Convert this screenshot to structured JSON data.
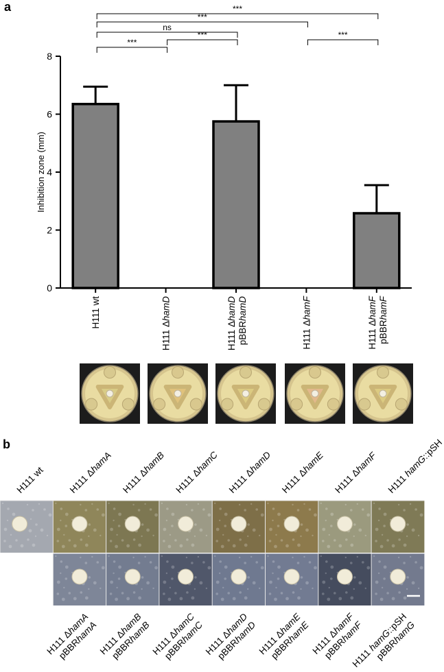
{
  "panel_a": {
    "label": "a",
    "chart_data": {
      "type": "bar",
      "ylabel": "Inhibition zone (mm)",
      "ylim": [
        0,
        8
      ],
      "yticks": [
        "0",
        "2",
        "4",
        "6",
        "8"
      ],
      "bar_color": "#808080",
      "categories": [
        {
          "prefix": "H111 ",
          "gene": "wt",
          "gene_italic": false,
          "delta": false,
          "plasmid_prefix": "",
          "plasmid_gene": ""
        },
        {
          "prefix": "H111 ",
          "gene": "hamD",
          "gene_italic": true,
          "delta": true,
          "plasmid_prefix": "",
          "plasmid_gene": ""
        },
        {
          "prefix": "H111 ",
          "gene": "hamD",
          "gene_italic": true,
          "delta": true,
          "plasmid_prefix": "pBBR",
          "plasmid_gene": "hamD"
        },
        {
          "prefix": "H111 ",
          "gene": "hamF",
          "gene_italic": true,
          "delta": true,
          "plasmid_prefix": "",
          "plasmid_gene": ""
        },
        {
          "prefix": "H111 ",
          "gene": "hamF",
          "gene_italic": true,
          "delta": true,
          "plasmid_prefix": "pBBR",
          "plasmid_gene": "hamF"
        }
      ],
      "values": [
        6.35,
        0,
        5.75,
        0,
        2.58
      ],
      "errors": [
        0.6,
        0,
        1.25,
        0,
        0.97
      ],
      "significance": [
        {
          "from": 0,
          "to": 4,
          "text": "***",
          "level": 0
        },
        {
          "from": 0,
          "to": 3,
          "text": "***",
          "level": 1
        },
        {
          "from": 0,
          "to": 2,
          "text": "ns",
          "level": 2
        },
        {
          "from": 1,
          "to": 2,
          "text": "***",
          "level": 3
        },
        {
          "from": 0,
          "to": 1,
          "text": "***",
          "level": 4
        },
        {
          "from": 3,
          "to": 4,
          "text": "***",
          "level": 3
        }
      ]
    },
    "plates": [
      {
        "halo": "#d9cc86",
        "colony": "#d8c98f"
      },
      {
        "halo": "#e0c27c",
        "colony": "#d9c88e"
      },
      {
        "halo": "#dccb82",
        "colony": "#d8c98f"
      },
      {
        "halo": "#e3b98c",
        "colony": "#d9c88e"
      },
      {
        "halo": "#dccb82",
        "colony": "#d8c98f"
      }
    ]
  },
  "panel_b": {
    "label": "b",
    "top_labels": [
      {
        "prefix": "H111 ",
        "gene": "wt",
        "italic": false,
        "delta": false,
        "suffix": ""
      },
      {
        "prefix": "H111 ",
        "gene": "hamA",
        "italic": true,
        "delta": true,
        "suffix": ""
      },
      {
        "prefix": "H111 ",
        "gene": "hamB",
        "italic": true,
        "delta": true,
        "suffix": ""
      },
      {
        "prefix": "H111 ",
        "gene": "hamC",
        "italic": true,
        "delta": true,
        "suffix": ""
      },
      {
        "prefix": "H111 ",
        "gene": "hamD",
        "italic": true,
        "delta": true,
        "suffix": ""
      },
      {
        "prefix": "H111 ",
        "gene": "hamE",
        "italic": true,
        "delta": true,
        "suffix": ""
      },
      {
        "prefix": "H111 ",
        "gene": "hamF",
        "italic": true,
        "delta": true,
        "suffix": ""
      },
      {
        "prefix": "H111 ",
        "gene": "hamG",
        "italic": true,
        "delta": false,
        "suffix": "::pSH"
      }
    ],
    "bottom_labels": [
      {
        "prefix": "H111 ",
        "gene": "hamA",
        "delta": true,
        "suffix": "",
        "plasmid": "hamA"
      },
      {
        "prefix": "H111 ",
        "gene": "hamB",
        "delta": true,
        "suffix": "",
        "plasmid": "hamB"
      },
      {
        "prefix": "H111 ",
        "gene": "hamC",
        "delta": true,
        "suffix": "",
        "plasmid": "hamC"
      },
      {
        "prefix": "H111 ",
        "gene": "hamD",
        "delta": true,
        "suffix": "",
        "plasmid": "hamD"
      },
      {
        "prefix": "H111 ",
        "gene": "hamE",
        "delta": true,
        "suffix": "",
        "plasmid": "hamE"
      },
      {
        "prefix": "H111 ",
        "gene": "hamF",
        "delta": true,
        "suffix": "",
        "plasmid": "hamF"
      },
      {
        "prefix": "H111 ",
        "gene": "hamG",
        "delta": false,
        "suffix": "::pSH",
        "plasmid": "hamG"
      }
    ],
    "plasmid_prefix": "pBBR",
    "top_tiles": [
      "#a4a8b0",
      "#8f865a",
      "#7d7752",
      "#9c9a86",
      "#7e6f48",
      "#8d7a4c",
      "#9b9a7e",
      "#7f7a56"
    ],
    "bottom_tiles": [
      "#7e8698",
      "#737c90",
      "#50576a",
      "#6f7990",
      "#727b92",
      "#454c5e",
      "#737a8e"
    ]
  }
}
